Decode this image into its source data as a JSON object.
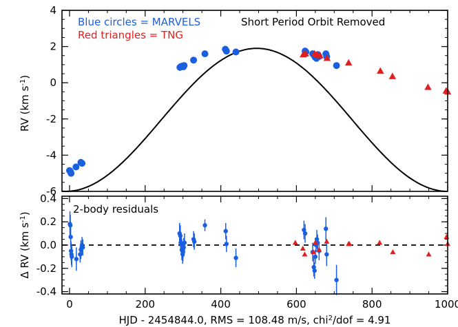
{
  "chart_data": [
    {
      "type": "scatter",
      "panel": "rv",
      "ylabel": "RV (km s",
      "ylabel_sup": "-1",
      "ylabel_close": ")",
      "xlim": [
        -20,
        1000
      ],
      "ylim": [
        -6,
        4
      ],
      "xticks": [
        0,
        200,
        400,
        600,
        800,
        1000
      ],
      "yticks": [
        -6,
        -4,
        -2,
        0,
        2,
        4
      ],
      "legend": [
        {
          "text": "Blue circles = MARVELS",
          "color": "#1a5fe0"
        },
        {
          "text": "Red triangles = TNG",
          "color": "#e02020"
        }
      ],
      "annotation": "Short Period Orbit Removed",
      "series": [
        {
          "name": "MARVELS",
          "marker": "circle",
          "color": "#1a5fe0",
          "x": [
            0,
            2,
            4,
            17,
            30,
            33,
            292,
            295,
            298,
            301,
            303,
            328,
            358,
            412,
            415,
            440,
            623,
            625,
            643,
            647,
            650,
            653,
            657,
            660,
            678,
            680,
            706
          ],
          "y": [
            -4.85,
            -4.9,
            -5.0,
            -4.65,
            -4.4,
            -4.45,
            0.85,
            0.9,
            0.92,
            0.88,
            0.95,
            1.25,
            1.6,
            1.85,
            1.75,
            1.7,
            1.75,
            1.7,
            1.6,
            1.5,
            1.4,
            1.35,
            1.55,
            1.45,
            1.6,
            1.45,
            0.95
          ]
        },
        {
          "name": "TNG",
          "marker": "triangle",
          "color": "#e02020",
          "x": [
            618,
            624,
            648,
            654,
            662,
            681,
            738,
            822,
            854,
            948,
            996,
            1000
          ],
          "y": [
            1.55,
            1.6,
            1.6,
            1.55,
            1.5,
            1.35,
            1.1,
            0.65,
            0.35,
            -0.25,
            -0.45,
            -0.5
          ]
        }
      ],
      "model": {
        "amplitude": 3.95,
        "offset": -2.05,
        "period": 1010,
        "peak_x": 495
      }
    },
    {
      "type": "scatter",
      "panel": "residuals",
      "ylabel": "Δ RV (km s",
      "ylabel_sup": "-1",
      "ylabel_close": ")",
      "xlim": [
        -20,
        1000
      ],
      "ylim": [
        -0.42,
        0.42
      ],
      "xticks": [
        0,
        200,
        400,
        600,
        800,
        1000
      ],
      "xtick_labels": [
        "0",
        "200",
        "400",
        "600",
        "800",
        "1000"
      ],
      "yticks": [
        -0.4,
        -0.2,
        0.0,
        0.2,
        0.4
      ],
      "ytick_labels": [
        "-0.4",
        "-0.2",
        "0.0",
        "0.2",
        "0.4"
      ],
      "annotation": "2-body residuals",
      "xlabel": "HJD - 2454844.0, RMS = 108.48 m/s, chi",
      "xlabel_sup": "2",
      "xlabel_tail": "/dof = 4.91",
      "zero_line": true,
      "series": [
        {
          "name": "MARVELS",
          "marker": "circle",
          "color": "#1a5fe0",
          "x": [
            1,
            2,
            3,
            4,
            5,
            6,
            18,
            28,
            30,
            33,
            35,
            291,
            293,
            294,
            296,
            297,
            299,
            300,
            302,
            304,
            328,
            330,
            358,
            413,
            415,
            440,
            620,
            623,
            643,
            646,
            648,
            650,
            652,
            654,
            656,
            660,
            678,
            680,
            706
          ],
          "y": [
            0.18,
            0.17,
            0.07,
            -0.05,
            -0.08,
            -0.1,
            -0.12,
            -0.08,
            -0.04,
            0.0,
            -0.02,
            0.1,
            0.08,
            0.02,
            0.0,
            -0.04,
            -0.08,
            -0.06,
            -0.02,
            0.02,
            0.05,
            0.03,
            0.17,
            0.12,
            0.01,
            -0.11,
            0.13,
            0.1,
            -0.06,
            -0.19,
            -0.22,
            -0.1,
            0.0,
            0.05,
            0.02,
            -0.05,
            0.14,
            -0.08,
            -0.3
          ],
          "err": [
            0.11,
            0.09,
            0.09,
            0.08,
            0.09,
            0.09,
            0.1,
            0.07,
            0.08,
            0.07,
            0.07,
            0.09,
            0.09,
            0.08,
            0.09,
            0.09,
            0.08,
            0.08,
            0.08,
            0.08,
            0.07,
            0.07,
            0.05,
            0.07,
            0.07,
            0.08,
            0.08,
            0.08,
            0.08,
            0.08,
            0.07,
            0.06,
            0.06,
            0.08,
            0.07,
            0.08,
            0.1,
            0.1,
            0.13
          ]
        },
        {
          "name": "TNG",
          "marker": "triangle",
          "color": "#e02020",
          "x": [
            597,
            617,
            622,
            645,
            650,
            660,
            680,
            738,
            740,
            820,
            855,
            950,
            997,
            1000
          ],
          "y": [
            0.02,
            -0.03,
            -0.08,
            -0.06,
            0.02,
            -0.04,
            0.03,
            0.01,
            0.01,
            0.02,
            -0.06,
            -0.08,
            0.07,
            0.01
          ]
        }
      ]
    }
  ]
}
